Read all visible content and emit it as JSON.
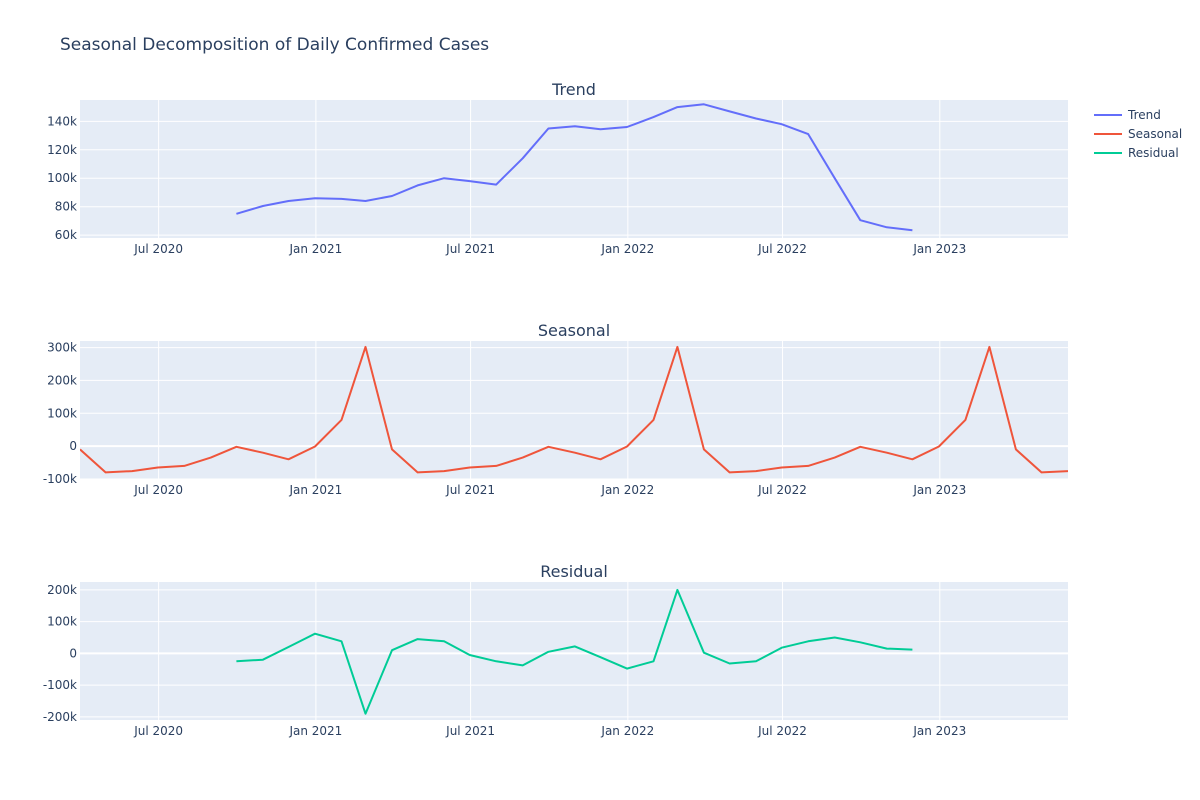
{
  "title": "Seasonal Decomposition of Daily Confirmed Cases",
  "chart_data": [
    {
      "type": "line",
      "title": "Trend",
      "x_ticks": [
        "Jul 2020",
        "Jan 2021",
        "Jul 2021",
        "Jan 2022",
        "Jul 2022",
        "Jan 2023"
      ],
      "y_ticks": [
        "60k",
        "80k",
        "100k",
        "120k",
        "140k"
      ],
      "ylim": [
        58000,
        155000
      ],
      "series": [
        {
          "name": "Trend",
          "color": "#636efa",
          "x": [
            "2020-09-30",
            "2020-10-31",
            "2020-11-30",
            "2020-12-31",
            "2021-01-31",
            "2021-02-28",
            "2021-03-31",
            "2021-04-30",
            "2021-05-31",
            "2021-06-30",
            "2021-07-31",
            "2021-08-31",
            "2021-09-30",
            "2021-10-31",
            "2021-11-30",
            "2021-12-31",
            "2022-01-31",
            "2022-02-28",
            "2022-03-31",
            "2022-04-30",
            "2022-05-31",
            "2022-06-30",
            "2022-07-31",
            "2022-08-31",
            "2022-09-30",
            "2022-10-31",
            "2022-11-30"
          ],
          "y": [
            75000,
            80500,
            84000,
            86000,
            85500,
            84000,
            87500,
            95000,
            100000,
            98000,
            95500,
            114000,
            135000,
            136500,
            134500,
            136000,
            143000,
            150000,
            152000,
            147000,
            142000,
            138000,
            131000,
            100000,
            70500,
            65500,
            63500
          ]
        }
      ]
    },
    {
      "type": "line",
      "title": "Seasonal",
      "x_ticks": [
        "Jul 2020",
        "Jan 2021",
        "Jul 2021",
        "Jan 2022",
        "Jul 2022",
        "Jan 2023"
      ],
      "y_ticks": [
        "-100k",
        "0",
        "100k",
        "200k",
        "300k"
      ],
      "ylim": [
        -100000,
        320000
      ],
      "series": [
        {
          "name": "Seasonal",
          "color": "#ef553b",
          "x": [
            "2020-03-31",
            "2020-04-30",
            "2020-05-31",
            "2020-06-30",
            "2020-07-31",
            "2020-08-31",
            "2020-09-30",
            "2020-10-31",
            "2020-11-30",
            "2020-12-31",
            "2021-01-31",
            "2021-02-28",
            "2021-03-31",
            "2021-04-30",
            "2021-05-31",
            "2021-06-30",
            "2021-07-31",
            "2021-08-31",
            "2021-09-30",
            "2021-10-31",
            "2021-11-30",
            "2021-12-31",
            "2022-01-31",
            "2022-02-28",
            "2022-03-31",
            "2022-04-30",
            "2022-05-31",
            "2022-06-30",
            "2022-07-31",
            "2022-08-31",
            "2022-09-30",
            "2022-10-31",
            "2022-11-30",
            "2022-12-31",
            "2023-01-31",
            "2023-02-28",
            "2023-03-31",
            "2023-04-30",
            "2023-05-31"
          ],
          "y": [
            -10000,
            -80000,
            -76000,
            -65000,
            -60000,
            -35000,
            -2000,
            -20000,
            -40000,
            -1000,
            80000,
            302000,
            -10000,
            -80000,
            -76000,
            -65000,
            -60000,
            -35000,
            -2000,
            -20000,
            -40000,
            -1000,
            80000,
            302000,
            -10000,
            -80000,
            -76000,
            -65000,
            -60000,
            -35000,
            -2000,
            -20000,
            -40000,
            -1000,
            80000,
            302000,
            -10000,
            -80000,
            -76000
          ]
        }
      ]
    },
    {
      "type": "line",
      "title": "Residual",
      "x_ticks": [
        "Jul 2020",
        "Jan 2021",
        "Jul 2021",
        "Jan 2022",
        "Jul 2022",
        "Jan 2023"
      ],
      "y_ticks": [
        "-200k",
        "-100k",
        "0",
        "100k",
        "200k"
      ],
      "ylim": [
        -210000,
        225000
      ],
      "series": [
        {
          "name": "Residual",
          "color": "#00cc96",
          "x": [
            "2020-09-30",
            "2020-10-31",
            "2020-11-30",
            "2020-12-31",
            "2021-01-31",
            "2021-02-28",
            "2021-03-31",
            "2021-04-30",
            "2021-05-31",
            "2021-06-30",
            "2021-07-31",
            "2021-08-31",
            "2021-09-30",
            "2021-10-31",
            "2021-11-30",
            "2021-12-31",
            "2022-01-31",
            "2022-02-28",
            "2022-03-31",
            "2022-04-30",
            "2022-05-31",
            "2022-06-30",
            "2022-07-31",
            "2022-08-31",
            "2022-09-30",
            "2022-10-31",
            "2022-11-30"
          ],
          "y": [
            -25000,
            -20000,
            20000,
            62000,
            38000,
            -190000,
            10000,
            45000,
            38000,
            -5000,
            -25000,
            -38000,
            5000,
            22000,
            -12000,
            -48000,
            -25000,
            200000,
            2000,
            -32000,
            -25000,
            18000,
            38000,
            50000,
            35000,
            15000,
            12000
          ]
        }
      ]
    }
  ],
  "legend": {
    "placement": "top-right",
    "items": [
      {
        "label": "Trend",
        "color": "#636efa"
      },
      {
        "label": "Seasonal",
        "color": "#ef553b"
      },
      {
        "label": "Residual",
        "color": "#00cc96"
      }
    ]
  },
  "axis_range": [
    "2020-03-31",
    "2023-05-31"
  ],
  "colors": {
    "plot_bg": "#e5ecf6",
    "grid": "#ffffff",
    "text": "#2a3f5f"
  }
}
